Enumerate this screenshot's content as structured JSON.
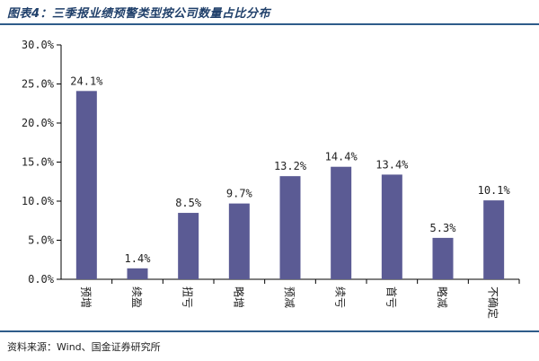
{
  "header": {
    "title": "图表4：三季报业绩预警类型按公司数量占比分布"
  },
  "footer": {
    "source": "资料来源：Wind、国金证券研究所"
  },
  "colors": {
    "bar": "#5b5b94",
    "rule": "#2e5c8a"
  },
  "chart_data": {
    "type": "bar",
    "categories": [
      "预增",
      "续盈",
      "扭亏",
      "略增",
      "预减",
      "续亏",
      "首亏",
      "略减",
      "不确定"
    ],
    "values": [
      24.1,
      1.4,
      8.5,
      9.7,
      13.2,
      14.4,
      13.4,
      5.3,
      10.1
    ],
    "value_labels": [
      "24.1%",
      "1.4%",
      "8.5%",
      "9.7%",
      "13.2%",
      "14.4%",
      "13.4%",
      "5.3%",
      "10.1%"
    ],
    "y_ticks": [
      "0.0%",
      "5.0%",
      "10.0%",
      "15.0%",
      "20.0%",
      "25.0%",
      "30.0%"
    ],
    "ylim": [
      0,
      30
    ],
    "y_step": 5,
    "grid": false,
    "title": "",
    "xlabel": "",
    "ylabel": ""
  }
}
